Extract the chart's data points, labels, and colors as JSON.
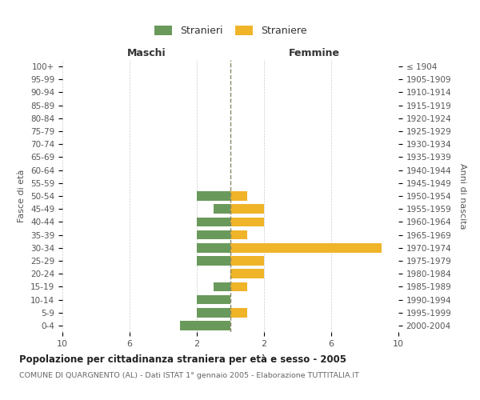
{
  "age_groups": [
    "0-4",
    "5-9",
    "10-14",
    "15-19",
    "20-24",
    "25-29",
    "30-34",
    "35-39",
    "40-44",
    "45-49",
    "50-54",
    "55-59",
    "60-64",
    "65-69",
    "70-74",
    "75-79",
    "80-84",
    "85-89",
    "90-94",
    "95-99",
    "100+"
  ],
  "birth_years": [
    "2000-2004",
    "1995-1999",
    "1990-1994",
    "1985-1989",
    "1980-1984",
    "1975-1979",
    "1970-1974",
    "1965-1969",
    "1960-1964",
    "1955-1959",
    "1950-1954",
    "1945-1949",
    "1940-1944",
    "1935-1939",
    "1930-1934",
    "1925-1929",
    "1920-1924",
    "1915-1919",
    "1910-1914",
    "1905-1909",
    "≤ 1904"
  ],
  "maschi": [
    3,
    2,
    2,
    1,
    0,
    2,
    2,
    2,
    2,
    1,
    2,
    0,
    0,
    0,
    0,
    0,
    0,
    0,
    0,
    0,
    0
  ],
  "femmine": [
    0,
    1,
    0,
    1,
    2,
    2,
    9,
    1,
    2,
    2,
    1,
    0,
    0,
    0,
    0,
    0,
    0,
    0,
    0,
    0,
    0
  ],
  "male_color": "#6a9a5b",
  "female_color": "#f0b429",
  "bg_color": "#ffffff",
  "grid_color": "#cccccc",
  "dashed_line_color": "#888866",
  "xlim": 10,
  "title": "Popolazione per cittadinanza straniera per età e sesso - 2005",
  "subtitle": "COMUNE DI QUARGNENTO (AL) - Dati ISTAT 1° gennaio 2005 - Elaborazione TUTTITALIA.IT",
  "xlabel_left": "Maschi",
  "xlabel_right": "Femmine",
  "ylabel_left": "Fasce di età",
  "ylabel_right": "Anni di nascita",
  "legend_male": "Stranieri",
  "legend_female": "Straniere"
}
